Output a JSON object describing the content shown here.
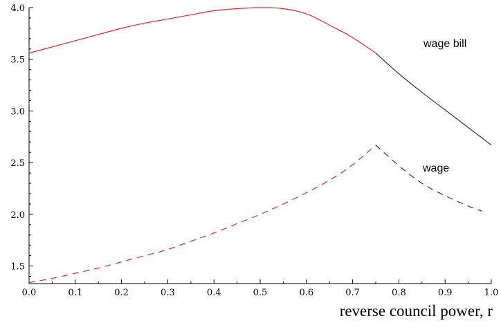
{
  "chart_data": {
    "type": "line",
    "title": "",
    "xlabel": "reverse council power, r",
    "ylabel": "",
    "xlim": [
      0.0,
      1.0
    ],
    "ylim": [
      1.33,
      4.0
    ],
    "x_ticks": [
      "0.0",
      "0.1",
      "0.2",
      "0.3",
      "0.4",
      "0.5",
      "0.6",
      "0.7",
      "0.8",
      "0.9",
      "1.0"
    ],
    "y_ticks": [
      "1.5",
      "2.0",
      "2.5",
      "3.0",
      "3.5",
      "4.0"
    ],
    "grid": false,
    "colors": {
      "red": "#e8242a",
      "blue": "#2a2a8a",
      "axis": "#000000"
    },
    "annotations": [
      {
        "text": "wage bill",
        "series": "wage bill"
      },
      {
        "text": "wage",
        "series": "wage"
      }
    ],
    "series": [
      {
        "name": "wage bill",
        "style": "solid",
        "x": [
          0.0,
          0.05,
          0.1,
          0.15,
          0.2,
          0.25,
          0.3,
          0.35,
          0.4,
          0.45,
          0.5,
          0.55,
          0.6,
          0.65,
          0.7,
          0.75,
          0.8,
          0.85,
          0.9,
          0.95,
          1.0
        ],
        "values": [
          3.56,
          3.62,
          3.68,
          3.74,
          3.8,
          3.85,
          3.89,
          3.93,
          3.97,
          3.99,
          4.0,
          3.99,
          3.94,
          3.83,
          3.71,
          3.56,
          3.36,
          3.18,
          3.01,
          2.84,
          2.67
        ],
        "color_split_x": 0.75
      },
      {
        "name": "wage",
        "style": "dashed",
        "x": [
          0.0,
          0.05,
          0.1,
          0.15,
          0.2,
          0.25,
          0.3,
          0.35,
          0.4,
          0.45,
          0.5,
          0.55,
          0.6,
          0.65,
          0.7,
          0.75,
          0.8,
          0.85,
          0.9,
          0.95,
          0.98
        ],
        "values": [
          1.34,
          1.38,
          1.43,
          1.48,
          1.54,
          1.6,
          1.66,
          1.74,
          1.82,
          1.91,
          2.0,
          2.1,
          2.21,
          2.33,
          2.48,
          2.67,
          2.47,
          2.3,
          2.18,
          2.08,
          2.03
        ],
        "color_split_x": 0.75
      }
    ]
  }
}
